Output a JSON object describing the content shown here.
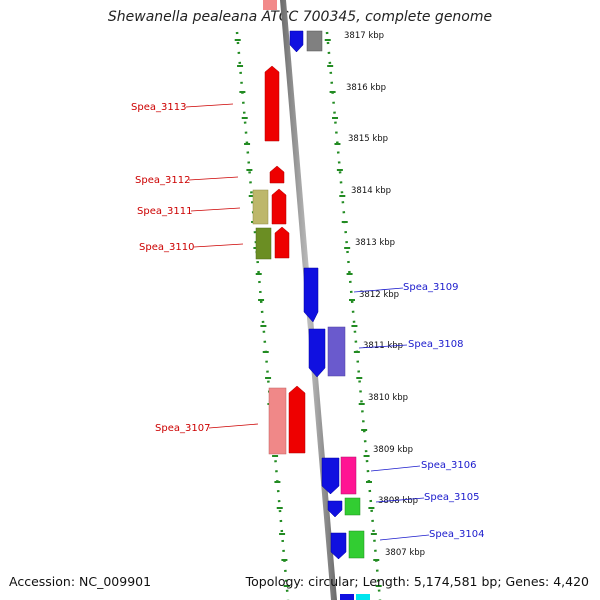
{
  "title": "Shewanella pealeana ATCC 700345, complete genome",
  "footer": {
    "accession": "Accession: NC_009901",
    "stats": "Topology: circular; Length: 5,174,581 bp; Genes: 4,420"
  },
  "kbp_labels": [
    "3817 kbp",
    "3816 kbp",
    "3815 kbp",
    "3814 kbp",
    "3813 kbp",
    "3812 kbp",
    "3811 kbp",
    "3810 kbp",
    "3809 kbp",
    "3808 kbp",
    "3807 kbp"
  ],
  "gene_labels": {
    "left": [
      "Spea_3113",
      "Spea_3112",
      "Spea_3111",
      "Spea_3110",
      "Spea_3107"
    ],
    "right": [
      "Spea_3109",
      "Spea_3108",
      "Spea_3106",
      "Spea_3105",
      "Spea_3104"
    ]
  },
  "colors": {
    "forward_genes": "#ee0000",
    "reverse_genes": "#1010e0",
    "backbone": "#888888",
    "ticks": "#228b22",
    "left_label": "#cc0000",
    "right_label": "#1a1acc"
  }
}
